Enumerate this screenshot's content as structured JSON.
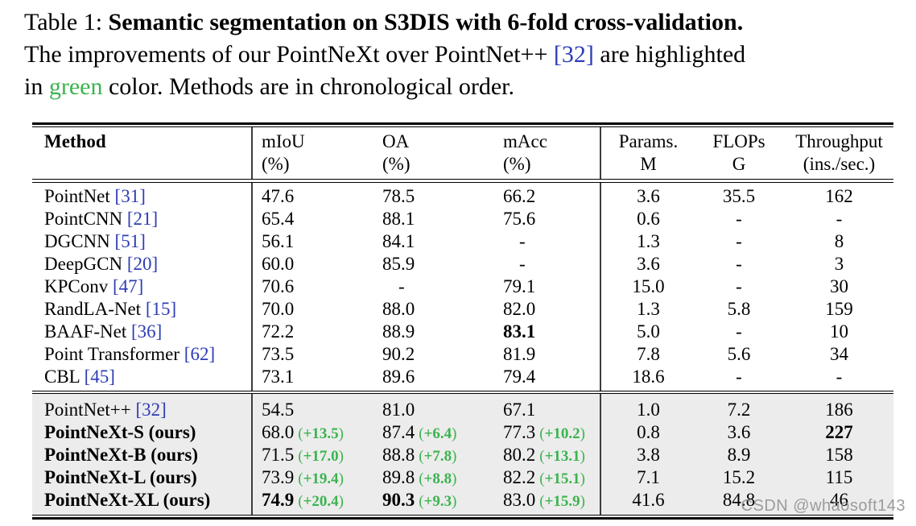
{
  "caption": {
    "lines": [
      [
        {
          "t": "Table 1: "
        },
        {
          "t": "Semantic segmentation on S3DIS with 6-fold cross-validation.",
          "b": true
        }
      ],
      [
        {
          "t": "The improvements of our PointNeXt over PointNet++ "
        },
        {
          "t": "[32]",
          "c": "cite"
        },
        {
          "t": " are highlighted"
        }
      ],
      [
        {
          "t": "in "
        },
        {
          "t": "green",
          "c": "green"
        },
        {
          "t": " color. Methods are in chronological order."
        }
      ]
    ]
  },
  "table": {
    "columns": [
      {
        "key": "method",
        "label": "Method",
        "sub": ""
      },
      {
        "key": "miou",
        "label": "mIoU",
        "sub": "(%)"
      },
      {
        "key": "oa",
        "label": "OA",
        "sub": "(%)"
      },
      {
        "key": "macc",
        "label": "mAcc",
        "sub": "(%)"
      },
      {
        "key": "params",
        "label": "Params.",
        "sub": "M"
      },
      {
        "key": "flops",
        "label": "FLOPs",
        "sub": "G"
      },
      {
        "key": "throughput",
        "label": "Throughput",
        "sub": "(ins./sec.)"
      }
    ],
    "sections": [
      {
        "name": "prior-methods",
        "shaded": false,
        "rows": [
          {
            "method": {
              "name": "PointNet",
              "cite": "[31]"
            },
            "miou": {
              "v": "47.6"
            },
            "oa": {
              "v": "78.5"
            },
            "macc": {
              "v": "66.2"
            },
            "params": {
              "v": "3.6"
            },
            "flops": {
              "v": "35.5"
            },
            "throughput": {
              "v": "162"
            }
          },
          {
            "method": {
              "name": "PointCNN",
              "cite": "[21]"
            },
            "miou": {
              "v": "65.4"
            },
            "oa": {
              "v": "88.1"
            },
            "macc": {
              "v": "75.6"
            },
            "params": {
              "v": "0.6"
            },
            "flops": {
              "v": "-"
            },
            "throughput": {
              "v": "-"
            }
          },
          {
            "method": {
              "name": "DGCNN",
              "cite": "[51]"
            },
            "miou": {
              "v": "56.1"
            },
            "oa": {
              "v": "84.1"
            },
            "macc": {
              "v": "-"
            },
            "params": {
              "v": "1.3"
            },
            "flops": {
              "v": "-"
            },
            "throughput": {
              "v": "8"
            }
          },
          {
            "method": {
              "name": "DeepGCN",
              "cite": "[20]"
            },
            "miou": {
              "v": "60.0"
            },
            "oa": {
              "v": "85.9"
            },
            "macc": {
              "v": "-"
            },
            "params": {
              "v": "3.6"
            },
            "flops": {
              "v": "-"
            },
            "throughput": {
              "v": "3"
            }
          },
          {
            "method": {
              "name": "KPConv",
              "cite": "[47]"
            },
            "miou": {
              "v": "70.6"
            },
            "oa": {
              "v": "-"
            },
            "macc": {
              "v": "79.1"
            },
            "params": {
              "v": "15.0"
            },
            "flops": {
              "v": "-"
            },
            "throughput": {
              "v": "30"
            }
          },
          {
            "method": {
              "name": "RandLA-Net",
              "cite": "[15]"
            },
            "miou": {
              "v": "70.0"
            },
            "oa": {
              "v": "88.0"
            },
            "macc": {
              "v": "82.0"
            },
            "params": {
              "v": "1.3"
            },
            "flops": {
              "v": "5.8"
            },
            "throughput": {
              "v": "159"
            }
          },
          {
            "method": {
              "name": "BAAF-Net",
              "cite": "[36]"
            },
            "miou": {
              "v": "72.2"
            },
            "oa": {
              "v": "88.9"
            },
            "macc": {
              "v": "83.1",
              "bold": true
            },
            "params": {
              "v": "5.0"
            },
            "flops": {
              "v": "-"
            },
            "throughput": {
              "v": "10"
            }
          },
          {
            "method": {
              "name": "Point Transformer",
              "cite": "[62]"
            },
            "miou": {
              "v": "73.5"
            },
            "oa": {
              "v": "90.2"
            },
            "macc": {
              "v": "81.9"
            },
            "params": {
              "v": "7.8"
            },
            "flops": {
              "v": "5.6"
            },
            "throughput": {
              "v": "34"
            }
          },
          {
            "method": {
              "name": "CBL",
              "cite": "[45]"
            },
            "miou": {
              "v": "73.1"
            },
            "oa": {
              "v": "89.6"
            },
            "macc": {
              "v": "79.4"
            },
            "params": {
              "v": "18.6"
            },
            "flops": {
              "v": "-"
            },
            "throughput": {
              "v": "-"
            }
          }
        ]
      },
      {
        "name": "pointnext-ours",
        "shaded": true,
        "rows": [
          {
            "method": {
              "name": "PointNet++",
              "cite": "[32]"
            },
            "miou": {
              "v": "54.5"
            },
            "oa": {
              "v": "81.0"
            },
            "macc": {
              "v": "67.1"
            },
            "params": {
              "v": "1.0"
            },
            "flops": {
              "v": "7.2"
            },
            "throughput": {
              "v": "186"
            }
          },
          {
            "method": {
              "name": "PointNeXt-S (ours)",
              "bold": true
            },
            "miou": {
              "v": "68.0",
              "delta": "+13.5"
            },
            "oa": {
              "v": "87.4",
              "delta": "+6.4"
            },
            "macc": {
              "v": "77.3",
              "delta": "+10.2"
            },
            "params": {
              "v": "0.8"
            },
            "flops": {
              "v": "3.6"
            },
            "throughput": {
              "v": "227",
              "bold": true
            }
          },
          {
            "method": {
              "name": "PointNeXt-B (ours)",
              "bold": true
            },
            "miou": {
              "v": "71.5",
              "delta": "+17.0"
            },
            "oa": {
              "v": "88.8",
              "delta": "+7.8"
            },
            "macc": {
              "v": "80.2",
              "delta": "+13.1"
            },
            "params": {
              "v": "3.8"
            },
            "flops": {
              "v": "8.9"
            },
            "throughput": {
              "v": "158"
            }
          },
          {
            "method": {
              "name": "PointNeXt-L (ours)",
              "bold": true
            },
            "miou": {
              "v": "73.9",
              "delta": "+19.4"
            },
            "oa": {
              "v": "89.8",
              "delta": "+8.8"
            },
            "macc": {
              "v": "82.2",
              "delta": "+15.1"
            },
            "params": {
              "v": "7.1"
            },
            "flops": {
              "v": "15.2"
            },
            "throughput": {
              "v": "115"
            }
          },
          {
            "method": {
              "name": "PointNeXt-XL (ours)",
              "bold": true
            },
            "miou": {
              "v": "74.9",
              "bold": true,
              "delta": "+20.4"
            },
            "oa": {
              "v": "90.3",
              "bold": true,
              "delta": "+9.3"
            },
            "macc": {
              "v": "83.0",
              "delta": "+15.9"
            },
            "params": {
              "v": "41.6"
            },
            "flops": {
              "v": "84.8"
            },
            "throughput": {
              "v": "46"
            }
          }
        ]
      }
    ]
  },
  "watermark": {
    "text": "CSDN @whaosoft143"
  },
  "colors": {
    "cite": "#2e3cb5",
    "green": "#3bb44e",
    "shaded_bg": "#ececec",
    "rule": "#000000",
    "watermark": "#909090"
  }
}
